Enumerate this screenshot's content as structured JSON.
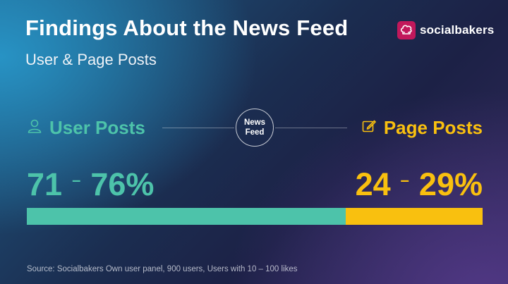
{
  "header": {
    "title": "Findings About the News Feed",
    "subtitle": "User & Page Posts",
    "brand": "socialbakers"
  },
  "center": {
    "line1": "News",
    "line2": "Feed"
  },
  "user": {
    "label": "User Posts",
    "icon": "user-icon",
    "range_low": "71",
    "range_sep": "–",
    "range_high": "76%",
    "color": "#4dc3aa",
    "share": 0.7
  },
  "page": {
    "label": "Page Posts",
    "icon": "pencil-edit-icon",
    "range_low": "24",
    "range_sep": "–",
    "range_high": "29%",
    "color": "#f9c00f",
    "share": 0.3
  },
  "footer": {
    "source": "Source: Socialbakers Own user panel, 900 users, Users with 10 – 100 likes"
  }
}
